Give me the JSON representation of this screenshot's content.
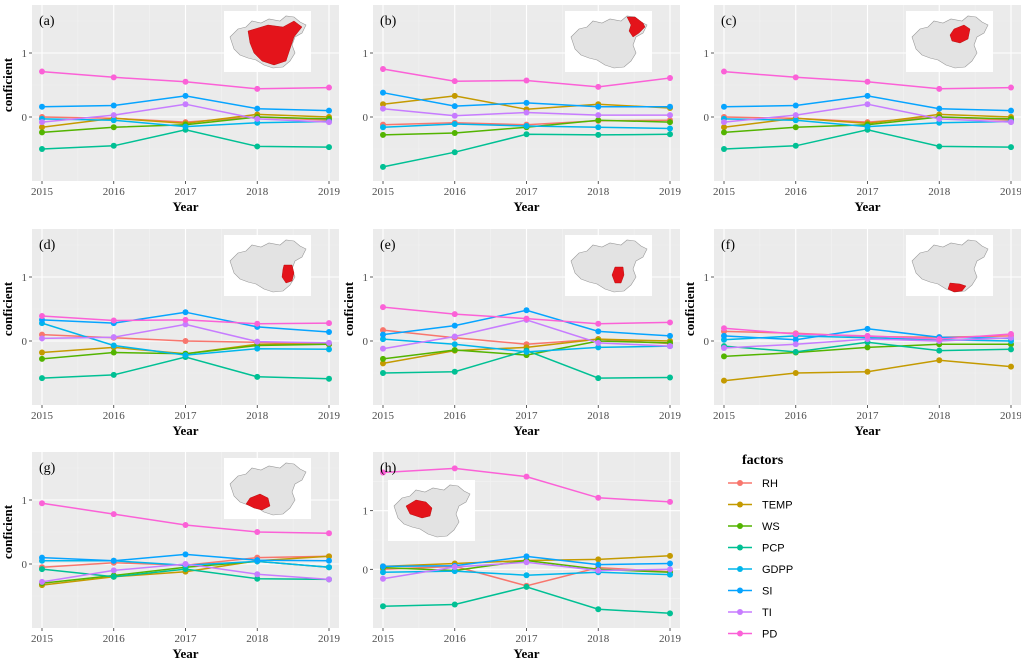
{
  "colors": {
    "RH": "#F8766D",
    "TEMP": "#C49A00",
    "WS": "#53B400",
    "PCP": "#00C094",
    "GDPP": "#00B6EB",
    "SI": "#06A4FF",
    "TI": "#C77CFF",
    "PD": "#FB61D7"
  },
  "legend": {
    "title": "factors",
    "entries": [
      "RH",
      "TEMP",
      "WS",
      "PCP",
      "GDPP",
      "SI",
      "TI",
      "PD"
    ]
  },
  "chart_data": [
    {
      "type": "line",
      "label": "(a)",
      "xlabel": "Year",
      "ylabel": "conficient",
      "x": [
        2015,
        2016,
        2017,
        2018,
        2019
      ],
      "ylim": [
        -1.0,
        1.75
      ],
      "yticks": [
        0,
        1
      ],
      "map_icon": "china-map-all-regions",
      "inset_side": "right",
      "series": [
        {
          "name": "RH",
          "values": [
            0.0,
            -0.02,
            -0.08,
            0.0,
            -0.05
          ]
        },
        {
          "name": "TEMP",
          "values": [
            -0.16,
            -0.02,
            -0.1,
            0.04,
            0.0
          ]
        },
        {
          "name": "WS",
          "values": [
            -0.24,
            -0.16,
            -0.12,
            0.0,
            -0.03
          ]
        },
        {
          "name": "PCP",
          "values": [
            -0.5,
            -0.45,
            -0.2,
            -0.46,
            -0.47
          ]
        },
        {
          "name": "GDPP",
          "values": [
            -0.03,
            -0.05,
            -0.15,
            -0.09,
            -0.07
          ]
        },
        {
          "name": "SI",
          "values": [
            0.16,
            0.18,
            0.33,
            0.13,
            0.1
          ]
        },
        {
          "name": "TI",
          "values": [
            -0.08,
            0.03,
            0.2,
            -0.03,
            -0.08
          ]
        },
        {
          "name": "PD",
          "values": [
            0.71,
            0.62,
            0.55,
            0.44,
            0.46
          ]
        }
      ]
    },
    {
      "type": "line",
      "label": "(b)",
      "xlabel": "Year",
      "ylabel": "",
      "x": [
        2015,
        2016,
        2017,
        2018,
        2019
      ],
      "ylim": [
        -1.0,
        1.75
      ],
      "yticks": [
        0,
        1
      ],
      "map_icon": "china-map-northeast",
      "inset_side": "right",
      "series": [
        {
          "name": "RH",
          "values": [
            -0.12,
            -0.09,
            -0.12,
            -0.06,
            -0.05
          ]
        },
        {
          "name": "TEMP",
          "values": [
            0.2,
            0.33,
            0.12,
            0.2,
            0.14
          ]
        },
        {
          "name": "WS",
          "values": [
            -0.28,
            -0.25,
            -0.16,
            -0.05,
            -0.08
          ]
        },
        {
          "name": "PCP",
          "values": [
            -0.78,
            -0.55,
            -0.27,
            -0.28,
            -0.27
          ]
        },
        {
          "name": "GDPP",
          "values": [
            -0.16,
            -0.11,
            -0.14,
            -0.16,
            -0.18
          ]
        },
        {
          "name": "SI",
          "values": [
            0.38,
            0.17,
            0.22,
            0.16,
            0.16
          ]
        },
        {
          "name": "TI",
          "values": [
            0.13,
            0.02,
            0.07,
            0.03,
            0.03
          ]
        },
        {
          "name": "PD",
          "values": [
            0.75,
            0.56,
            0.57,
            0.47,
            0.61
          ]
        }
      ]
    },
    {
      "type": "line",
      "label": "(c)",
      "xlabel": "Year",
      "ylabel": "",
      "x": [
        2015,
        2016,
        2017,
        2018,
        2019
      ],
      "ylim": [
        -1.0,
        1.75
      ],
      "yticks": [
        0,
        1
      ],
      "map_icon": "china-map-north",
      "inset_side": "right",
      "series": [
        {
          "name": "RH",
          "values": [
            0.0,
            -0.02,
            -0.08,
            0.0,
            -0.05
          ]
        },
        {
          "name": "TEMP",
          "values": [
            -0.16,
            -0.02,
            -0.1,
            0.04,
            0.0
          ]
        },
        {
          "name": "WS",
          "values": [
            -0.24,
            -0.16,
            -0.12,
            0.0,
            -0.03
          ]
        },
        {
          "name": "PCP",
          "values": [
            -0.5,
            -0.45,
            -0.2,
            -0.46,
            -0.47
          ]
        },
        {
          "name": "GDPP",
          "values": [
            -0.03,
            -0.05,
            -0.15,
            -0.09,
            -0.07
          ]
        },
        {
          "name": "SI",
          "values": [
            0.16,
            0.18,
            0.33,
            0.13,
            0.1
          ]
        },
        {
          "name": "TI",
          "values": [
            -0.08,
            0.03,
            0.2,
            -0.03,
            -0.08
          ]
        },
        {
          "name": "PD",
          "values": [
            0.71,
            0.62,
            0.55,
            0.44,
            0.46
          ]
        }
      ]
    },
    {
      "type": "line",
      "label": "(d)",
      "xlabel": "Year",
      "ylabel": "conficient",
      "x": [
        2015,
        2016,
        2017,
        2018,
        2019
      ],
      "ylim": [
        -1.0,
        1.75
      ],
      "yticks": [
        0,
        1
      ],
      "map_icon": "china-map-east",
      "inset_side": "right",
      "series": [
        {
          "name": "RH",
          "values": [
            0.1,
            0.05,
            0.0,
            -0.02,
            -0.05
          ]
        },
        {
          "name": "TEMP",
          "values": [
            -0.18,
            -0.1,
            -0.2,
            -0.05,
            -0.05
          ]
        },
        {
          "name": "WS",
          "values": [
            -0.28,
            -0.18,
            -0.2,
            -0.07,
            -0.05
          ]
        },
        {
          "name": "PCP",
          "values": [
            -0.58,
            -0.53,
            -0.25,
            -0.56,
            -0.59
          ]
        },
        {
          "name": "GDPP",
          "values": [
            0.28,
            -0.07,
            -0.22,
            -0.12,
            -0.13
          ]
        },
        {
          "name": "SI",
          "values": [
            0.33,
            0.28,
            0.45,
            0.22,
            0.14
          ]
        },
        {
          "name": "TI",
          "values": [
            0.04,
            0.06,
            0.26,
            -0.01,
            -0.03
          ]
        },
        {
          "name": "PD",
          "values": [
            0.39,
            0.32,
            0.33,
            0.27,
            0.28
          ]
        }
      ]
    },
    {
      "type": "line",
      "label": "(e)",
      "xlabel": "Year",
      "ylabel": "conficient",
      "x": [
        2015,
        2016,
        2017,
        2018,
        2019
      ],
      "ylim": [
        -1.0,
        1.75
      ],
      "yticks": [
        0,
        1
      ],
      "map_icon": "china-map-central",
      "inset_side": "right",
      "series": [
        {
          "name": "RH",
          "values": [
            0.17,
            0.05,
            -0.05,
            0.03,
            -0.04
          ]
        },
        {
          "name": "TEMP",
          "values": [
            -0.35,
            -0.15,
            -0.1,
            0.03,
            0.0
          ]
        },
        {
          "name": "WS",
          "values": [
            -0.28,
            -0.14,
            -0.22,
            0.0,
            -0.03
          ]
        },
        {
          "name": "PCP",
          "values": [
            -0.5,
            -0.48,
            -0.15,
            -0.58,
            -0.57
          ]
        },
        {
          "name": "GDPP",
          "values": [
            0.03,
            -0.05,
            -0.17,
            -0.1,
            -0.08
          ]
        },
        {
          "name": "SI",
          "values": [
            0.1,
            0.24,
            0.48,
            0.15,
            0.08
          ]
        },
        {
          "name": "TI",
          "values": [
            -0.12,
            0.07,
            0.33,
            -0.03,
            -0.08
          ]
        },
        {
          "name": "PD",
          "values": [
            0.53,
            0.42,
            0.35,
            0.27,
            0.29
          ]
        }
      ]
    },
    {
      "type": "line",
      "label": "(f)",
      "xlabel": "Year",
      "ylabel": "conficient",
      "x": [
        2015,
        2016,
        2017,
        2018,
        2019
      ],
      "ylim": [
        -1.0,
        1.75
      ],
      "yticks": [
        0,
        1
      ],
      "map_icon": "china-map-south",
      "inset_side": "right",
      "series": [
        {
          "name": "RH",
          "values": [
            0.15,
            0.12,
            0.07,
            0.06,
            0.08
          ]
        },
        {
          "name": "TEMP",
          "values": [
            -0.62,
            -0.5,
            -0.48,
            -0.3,
            -0.4
          ]
        },
        {
          "name": "WS",
          "values": [
            -0.24,
            -0.18,
            -0.1,
            -0.05,
            -0.05
          ]
        },
        {
          "name": "PCP",
          "values": [
            -0.08,
            -0.17,
            -0.02,
            -0.15,
            -0.13
          ]
        },
        {
          "name": "GDPP",
          "values": [
            0.02,
            0.08,
            0.05,
            0.02,
            0.0
          ]
        },
        {
          "name": "SI",
          "values": [
            0.08,
            0.02,
            0.19,
            0.06,
            0.04
          ]
        },
        {
          "name": "TI",
          "values": [
            -0.11,
            -0.05,
            0.03,
            0.0,
            0.05
          ]
        },
        {
          "name": "PD",
          "values": [
            0.2,
            0.11,
            0.08,
            0.03,
            0.11
          ]
        }
      ]
    },
    {
      "type": "line",
      "label": "(g)",
      "xlabel": "Year",
      "ylabel": "conficient",
      "x": [
        2015,
        2016,
        2017,
        2018,
        2019
      ],
      "ylim": [
        -1.0,
        1.75
      ],
      "yticks": [
        0,
        1
      ],
      "map_icon": "china-map-southwest",
      "inset_side": "right",
      "series": [
        {
          "name": "RH",
          "values": [
            -0.05,
            0.02,
            -0.02,
            0.1,
            0.12
          ]
        },
        {
          "name": "TEMP",
          "values": [
            -0.33,
            -0.2,
            -0.12,
            0.05,
            0.12
          ]
        },
        {
          "name": "WS",
          "values": [
            -0.3,
            -0.18,
            -0.05,
            0.04,
            -0.05
          ]
        },
        {
          "name": "PCP",
          "values": [
            -0.08,
            -0.2,
            -0.08,
            -0.23,
            -0.24
          ]
        },
        {
          "name": "GDPP",
          "values": [
            0.05,
            0.05,
            -0.02,
            0.04,
            -0.05
          ]
        },
        {
          "name": "SI",
          "values": [
            0.1,
            0.05,
            0.15,
            0.06,
            0.05
          ]
        },
        {
          "name": "TI",
          "values": [
            -0.28,
            -0.1,
            0.0,
            -0.16,
            -0.24
          ]
        },
        {
          "name": "PD",
          "values": [
            0.95,
            0.78,
            0.61,
            0.5,
            0.48
          ]
        }
      ]
    },
    {
      "type": "line",
      "label": "(h)",
      "xlabel": "Year",
      "ylabel": "",
      "x": [
        2015,
        2016,
        2017,
        2018,
        2019
      ],
      "ylim": [
        -1.0,
        2.0
      ],
      "yticks": [
        0,
        1
      ],
      "map_icon": "china-map-northwest",
      "inset_side": "left",
      "series": [
        {
          "name": "RH",
          "values": [
            0.0,
            0.05,
            -0.28,
            0.03,
            -0.04
          ]
        },
        {
          "name": "TEMP",
          "values": [
            0.05,
            0.1,
            0.15,
            0.17,
            0.23
          ]
        },
        {
          "name": "WS",
          "values": [
            0.03,
            -0.02,
            0.15,
            0.0,
            -0.05
          ]
        },
        {
          "name": "PCP",
          "values": [
            -0.63,
            -0.6,
            -0.3,
            -0.68,
            -0.75
          ]
        },
        {
          "name": "GDPP",
          "values": [
            -0.05,
            -0.03,
            -0.1,
            -0.05,
            -0.09
          ]
        },
        {
          "name": "SI",
          "values": [
            0.05,
            0.06,
            0.22,
            0.08,
            0.1
          ]
        },
        {
          "name": "TI",
          "values": [
            -0.16,
            0.04,
            0.12,
            -0.02,
            0.0
          ]
        },
        {
          "name": "PD",
          "values": [
            1.65,
            1.72,
            1.58,
            1.22,
            1.15
          ]
        }
      ]
    }
  ]
}
